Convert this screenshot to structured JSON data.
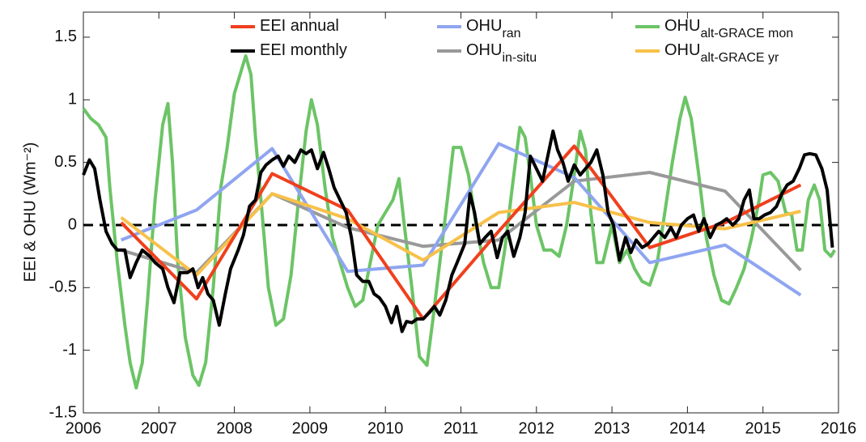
{
  "chart_data": {
    "type": "line",
    "ylabel": "EEI & OHU (Wm⁻²)",
    "xlim": [
      2006,
      2016
    ],
    "xticks": [
      2006,
      2007,
      2008,
      2009,
      2010,
      2011,
      2012,
      2013,
      2014,
      2015,
      2016
    ],
    "ylim": [
      -1.5,
      1.7
    ],
    "yticks": [
      -1.5,
      -1,
      -0.5,
      0,
      0.5,
      1,
      1.5
    ],
    "series": [
      {
        "name": "EEI annual",
        "color": "#f0401e",
        "x": [
          2006.5,
          2007.5,
          2008.5,
          2009.5,
          2010.5,
          2011.5,
          2012.5,
          2013.5,
          2014.5,
          2015.5
        ],
        "values": [
          0.02,
          -0.59,
          0.41,
          0.12,
          -0.75,
          -0.05,
          0.63,
          -0.18,
          0.02,
          0.32
        ]
      },
      {
        "name": "EEI monthly",
        "color": "#000000",
        "x": [
          2006.0,
          2006.08,
          2006.15,
          2006.22,
          2006.3,
          2006.38,
          2006.45,
          2006.55,
          2006.62,
          2006.7,
          2006.78,
          2006.88,
          2006.95,
          2007.05,
          2007.12,
          2007.2,
          2007.28,
          2007.38,
          2007.45,
          2007.52,
          2007.58,
          2007.65,
          2007.72,
          2007.8,
          2007.88,
          2007.95,
          2008.05,
          2008.12,
          2008.2,
          2008.28,
          2008.35,
          2008.42,
          2008.5,
          2008.58,
          2008.65,
          2008.72,
          2008.8,
          2008.88,
          2008.95,
          2009.02,
          2009.1,
          2009.18,
          2009.25,
          2009.32,
          2009.4,
          2009.48,
          2009.55,
          2009.62,
          2009.7,
          2009.78,
          2009.85,
          2009.92,
          2010.0,
          2010.08,
          2010.15,
          2010.22,
          2010.28,
          2010.35,
          2010.42,
          2010.5,
          2010.58,
          2010.65,
          2010.72,
          2010.8,
          2010.88,
          2010.95,
          2011.05,
          2011.12,
          2011.18,
          2011.25,
          2011.32,
          2011.4,
          2011.48,
          2011.55,
          2011.62,
          2011.7,
          2011.78,
          2011.85,
          2011.92,
          2012.0,
          2012.08,
          2012.15,
          2012.22,
          2012.28,
          2012.35,
          2012.42,
          2012.5,
          2012.58,
          2012.65,
          2012.72,
          2012.8,
          2012.88,
          2012.95,
          2013.02,
          2013.1,
          2013.18,
          2013.25,
          2013.32,
          2013.4,
          2013.48,
          2013.55,
          2013.62,
          2013.7,
          2013.78,
          2013.85,
          2013.92,
          2014.0,
          2014.08,
          2014.15,
          2014.22,
          2014.3,
          2014.38,
          2014.45,
          2014.52,
          2014.6,
          2014.68,
          2014.75,
          2014.82,
          2014.88,
          2014.95,
          2015.02,
          2015.1,
          2015.18,
          2015.25,
          2015.32,
          2015.4,
          2015.48,
          2015.55,
          2015.62,
          2015.7,
          2015.78,
          2015.85,
          2015.92
        ],
        "values": [
          0.4,
          0.52,
          0.45,
          0.2,
          -0.05,
          -0.15,
          -0.2,
          -0.2,
          -0.42,
          -0.3,
          -0.2,
          -0.25,
          -0.3,
          -0.35,
          -0.5,
          -0.62,
          -0.38,
          -0.38,
          -0.35,
          -0.5,
          -0.42,
          -0.55,
          -0.6,
          -0.8,
          -0.55,
          -0.35,
          -0.2,
          -0.08,
          0.15,
          0.2,
          0.42,
          0.48,
          0.52,
          0.55,
          0.47,
          0.55,
          0.5,
          0.6,
          0.57,
          0.6,
          0.45,
          0.58,
          0.45,
          0.3,
          0.2,
          0.1,
          -0.1,
          -0.4,
          -0.45,
          -0.45,
          -0.55,
          -0.58,
          -0.65,
          -0.78,
          -0.65,
          -0.85,
          -0.77,
          -0.78,
          -0.75,
          -0.75,
          -0.7,
          -0.65,
          -0.72,
          -0.6,
          -0.4,
          -0.3,
          -0.15,
          0.25,
          0.1,
          -0.15,
          -0.1,
          -0.05,
          -0.26,
          -0.1,
          -0.05,
          -0.25,
          -0.1,
          0.1,
          0.55,
          0.45,
          0.35,
          0.55,
          0.75,
          0.6,
          0.5,
          0.35,
          0.48,
          0.4,
          0.45,
          0.5,
          0.6,
          0.4,
          0.1,
          0.0,
          -0.28,
          -0.1,
          -0.22,
          -0.12,
          -0.18,
          -0.15,
          -0.1,
          -0.05,
          -0.1,
          -0.02,
          -0.1,
          0.0,
          0.05,
          0.08,
          -0.05,
          0.05,
          -0.1,
          0.0,
          0.02,
          0.05,
          0.0,
          0.05,
          0.2,
          0.28,
          0.05,
          0.05,
          0.08,
          0.1,
          0.15,
          0.25,
          0.32,
          0.35,
          0.45,
          0.56,
          0.57,
          0.56,
          0.45,
          0.28,
          -0.18
        ]
      },
      {
        "name": "OHU",
        "subscript": "ran",
        "color": "#8fa5f0",
        "x": [
          2006.5,
          2007.5,
          2008.5,
          2009.5,
          2010.5,
          2011.5,
          2012.5,
          2013.5,
          2014.5,
          2015.5
        ],
        "values": [
          -0.12,
          0.12,
          0.61,
          -0.37,
          -0.32,
          0.65,
          0.38,
          -0.3,
          -0.16,
          -0.56
        ]
      },
      {
        "name": "OHU",
        "subscript": "in-situ",
        "color": "#999999",
        "x": [
          2006.5,
          2007.5,
          2008.5,
          2009.5,
          2010.5,
          2011.5,
          2012.5,
          2013.5,
          2014.5,
          2015.5
        ],
        "values": [
          -0.2,
          -0.38,
          0.25,
          -0.02,
          -0.17,
          -0.12,
          0.35,
          0.42,
          0.27,
          -0.36
        ]
      },
      {
        "name": "OHU",
        "subscript": "alt-GRACE mon",
        "color": "#6cc466",
        "x": [
          2006.0,
          2006.1,
          2006.2,
          2006.3,
          2006.35,
          2006.45,
          2006.55,
          2006.62,
          2006.7,
          2006.78,
          2006.85,
          2006.95,
          2007.05,
          2007.12,
          2007.18,
          2007.25,
          2007.35,
          2007.45,
          2007.53,
          2007.62,
          2007.72,
          2007.82,
          2007.9,
          2008.0,
          2008.1,
          2008.15,
          2008.22,
          2008.28,
          2008.38,
          2008.45,
          2008.55,
          2008.65,
          2008.75,
          2008.85,
          2008.95,
          2009.02,
          2009.1,
          2009.2,
          2009.3,
          2009.4,
          2009.5,
          2009.6,
          2009.7,
          2009.8,
          2009.9,
          2010.0,
          2010.1,
          2010.18,
          2010.25,
          2010.35,
          2010.45,
          2010.55,
          2010.62,
          2010.72,
          2010.82,
          2010.9,
          2011.0,
          2011.1,
          2011.2,
          2011.3,
          2011.4,
          2011.5,
          2011.58,
          2011.68,
          2011.78,
          2011.85,
          2011.92,
          2012.0,
          2012.1,
          2012.2,
          2012.3,
          2012.4,
          2012.5,
          2012.58,
          2012.65,
          2012.72,
          2012.8,
          2012.88,
          2013.0,
          2013.1,
          2013.2,
          2013.3,
          2013.4,
          2013.5,
          2013.6,
          2013.7,
          2013.8,
          2013.9,
          2013.97,
          2014.05,
          2014.15,
          2014.25,
          2014.35,
          2014.45,
          2014.55,
          2014.65,
          2014.75,
          2014.85,
          2014.95,
          2015.0,
          2015.1,
          2015.2,
          2015.3,
          2015.38,
          2015.45,
          2015.52,
          2015.6,
          2015.68,
          2015.75,
          2015.82,
          2015.9,
          2015.95
        ],
        "values": [
          0.93,
          0.85,
          0.8,
          0.7,
          0.3,
          -0.3,
          -0.8,
          -1.1,
          -1.3,
          -1.1,
          -0.6,
          0.2,
          0.8,
          0.97,
          0.5,
          -0.3,
          -0.9,
          -1.2,
          -1.28,
          -1.1,
          -0.5,
          0.3,
          0.6,
          1.05,
          1.25,
          1.35,
          1.2,
          0.7,
          0.0,
          -0.5,
          -0.8,
          -0.75,
          -0.4,
          0.2,
          0.75,
          1.0,
          0.8,
          0.3,
          -0.1,
          -0.3,
          -0.5,
          -0.65,
          -0.6,
          -0.3,
          0.0,
          0.1,
          0.2,
          0.37,
          0.0,
          -0.5,
          -1.05,
          -1.12,
          -0.8,
          -0.3,
          0.2,
          0.62,
          0.62,
          0.4,
          0.0,
          -0.3,
          -0.5,
          -0.5,
          -0.2,
          0.3,
          0.78,
          0.7,
          0.4,
          0.0,
          -0.2,
          -0.2,
          -0.25,
          0.0,
          0.4,
          0.75,
          0.6,
          0.1,
          -0.3,
          -0.3,
          0.0,
          -0.3,
          -0.2,
          -0.35,
          -0.45,
          -0.48,
          -0.3,
          0.1,
          0.5,
          0.85,
          1.02,
          0.85,
          0.4,
          -0.1,
          -0.4,
          -0.6,
          -0.63,
          -0.5,
          -0.35,
          -0.1,
          0.2,
          0.4,
          0.42,
          0.35,
          0.1,
          0.08,
          -0.2,
          -0.2,
          0.2,
          0.32,
          0.2,
          -0.2,
          -0.25,
          -0.2
        ]
      },
      {
        "name": "OHU",
        "subscript": "alt-GRACE yr",
        "color": "#f7c14a",
        "x": [
          2006.5,
          2007.5,
          2008.5,
          2009.5,
          2010.5,
          2011.5,
          2012.5,
          2013.5,
          2014.5,
          2015.5
        ],
        "values": [
          0.06,
          -0.4,
          0.25,
          0.05,
          -0.28,
          0.1,
          0.18,
          0.02,
          -0.03,
          0.11
        ]
      }
    ]
  }
}
